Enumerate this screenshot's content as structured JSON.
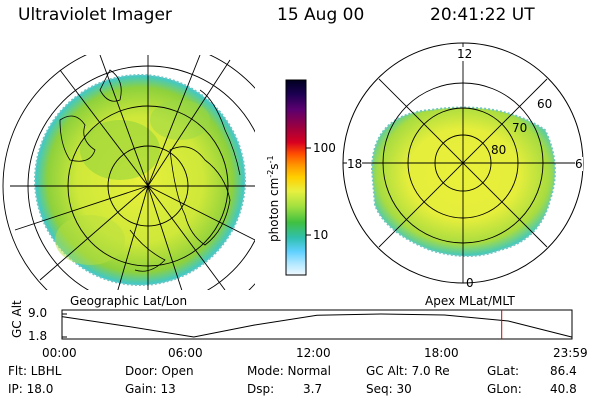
{
  "header": {
    "instrument": "Ultraviolet Imager",
    "date": "15 Aug 00",
    "time": "20:41:22 UT"
  },
  "colors": {
    "auroral_fill_green": "#8ed13c",
    "auroral_fill_yellow": "#e8f03a",
    "cyan_edge": "#3cc8d0",
    "ut_marker": "#cc0000"
  },
  "geo_map": {
    "name": "Geographic Lat/Lon"
  },
  "mlt_dial": {
    "name": "Apex MLat/MLT",
    "hour_labels": [
      "12",
      "18",
      "6",
      "0"
    ],
    "lat_labels": [
      "60",
      "70",
      "80"
    ]
  },
  "colorbar": {
    "unit_label": "photon cm",
    "unit_sup1": "-2",
    "unit_mid": "s",
    "unit_sup2": "-1",
    "ticks": [
      "100",
      "10"
    ],
    "scale": "log",
    "colors": [
      "#000020",
      "#1a0050",
      "#5a0070",
      "#9a0040",
      "#d80020",
      "#ff5000",
      "#ff9a00",
      "#ffd000",
      "#e8f040",
      "#a0e040",
      "#40c040",
      "#30c0b0",
      "#60d0ff",
      "#b0e8ff",
      "#f0f8ff"
    ]
  },
  "altitude_plot": {
    "ylabel": "GC Alt",
    "yticks": [
      "9.0",
      "1.8"
    ],
    "xticks": [
      "00:00",
      "06:00",
      "12:00",
      "18:00",
      "23:59"
    ],
    "series": {
      "hours": [
        0,
        3,
        6.2,
        9,
        12,
        15,
        18,
        21,
        23.98
      ],
      "alt_re": [
        8.2,
        5.2,
        1.8,
        5.5,
        8.6,
        9.0,
        8.7,
        6.8,
        1.8
      ]
    },
    "marker_hour": 20.69
  },
  "info": {
    "flt_label": "Flt: LBHL",
    "ip_label": "IP: 18.0",
    "door_label": "Door: Open",
    "gain_label": "Gain: 13",
    "mode_label": "Mode: Normal",
    "dsp_label": "Dsp:",
    "dsp_value": "3.7",
    "gcalt_label": "GC Alt: 7.0 Re",
    "seq_label": "Seq: 30",
    "glat_label": "GLat:",
    "glat_value": "86.4",
    "glon_label": "GLon:",
    "glon_value": "40.8"
  }
}
